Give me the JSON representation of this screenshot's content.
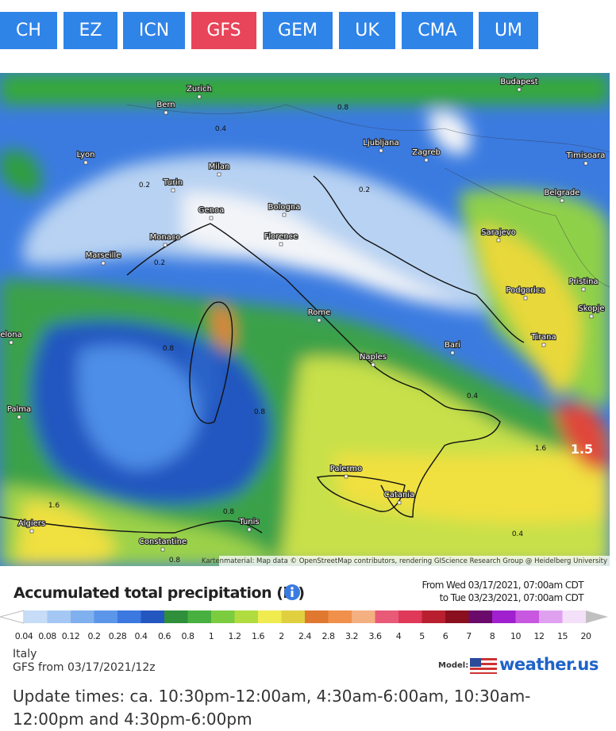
{
  "tabs": [
    "CH",
    "EZ",
    "ICN",
    "GFS",
    "GEM",
    "UK",
    "CMA",
    "UM"
  ],
  "active_tab": "GFS",
  "map": {
    "cities": [
      "Zurich",
      "Budapest",
      "Bern",
      "Lyon",
      "Ljubljana",
      "Zagreb",
      "Timisoara",
      "Milan",
      "Turin",
      "Belgrade",
      "Genoa",
      "Bologna",
      "Monaco",
      "Florence",
      "Sarajevo",
      "Marseille",
      "Podgorica",
      "Pristina",
      "Rome",
      "Skopje",
      "Tirana",
      "Bari",
      "Naples",
      "elona",
      "Palma",
      "Palermo",
      "Catania",
      "Algiers",
      "Tunis",
      "Constantine"
    ],
    "contour_labels": [
      "0.8",
      "0.4",
      "0.2",
      "0.2",
      "0.2",
      "0.8",
      "0.8",
      "0.4",
      "1.6",
      "1.5",
      "1.6",
      "0.8",
      "0.4",
      "0.8"
    ],
    "attribution": "Kartenmaterial: Map data © OpenStreetMap contributors, rendering GIScience Research Group @ Heidelberg University"
  },
  "legend": {
    "title": "Accumulated total precipitation (in)",
    "from": "From Wed 03/17/2021, 07:00am CDT",
    "to": "to Tue 03/23/2021, 07:00am CDT",
    "scale": [
      "0.04",
      "0.08",
      "0.12",
      "0.2",
      "0.28",
      "0.4",
      "0.6",
      "0.8",
      "1",
      "1.2",
      "1.6",
      "2",
      "2.4",
      "2.8",
      "3.2",
      "3.6",
      "4",
      "5",
      "6",
      "7",
      "8",
      "10",
      "12",
      "15",
      "20"
    ]
  },
  "footer": {
    "region": "Italy",
    "run": "GFS from 03/17/2021/12z",
    "model_label": "Model:",
    "brand": "weather.us",
    "update_times": "Update times: ca. 10:30pm-12:00am, 4:30am-6:00am, 10:30am-12:00pm and 4:30pm-6:00pm"
  }
}
